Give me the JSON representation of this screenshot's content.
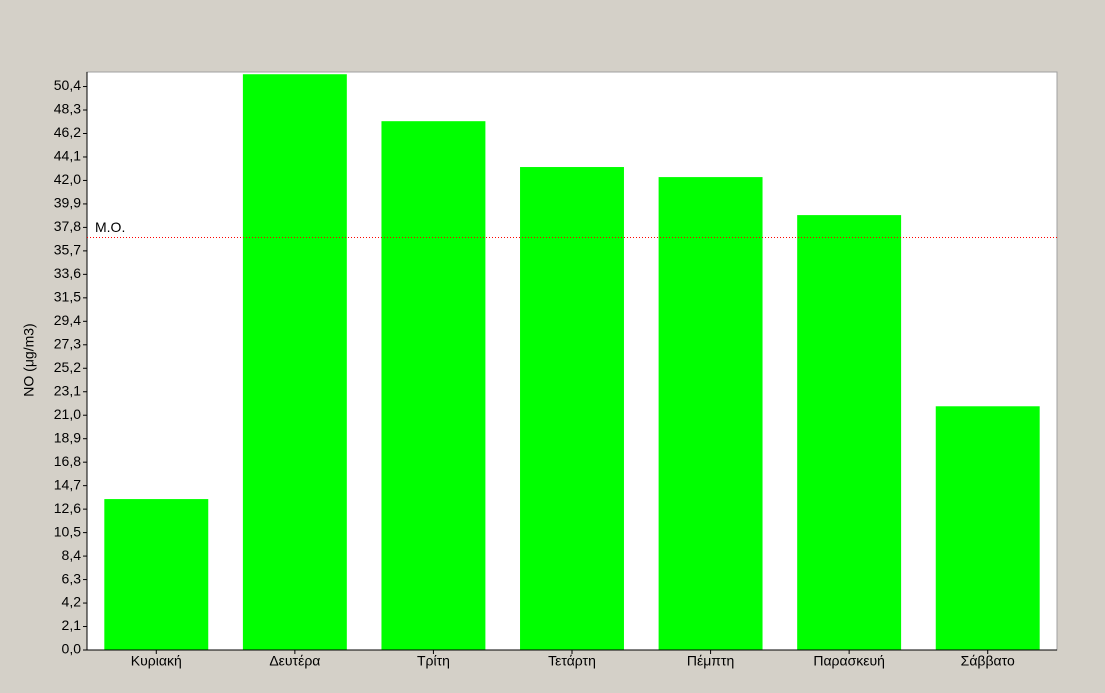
{
  "chart_data": {
    "type": "bar",
    "y_label": "NO (μg/m3)",
    "categories": [
      "Κυριακή",
      "Δευτέρα",
      "Τρίτη",
      "Τετάρτη",
      "Πέμπτη",
      "Παρασκευή",
      "Σάββατο"
    ],
    "values": [
      13.5,
      51.5,
      47.3,
      43.2,
      42.3,
      38.9,
      21.8
    ],
    "color": "#00ff00",
    "ylim": [
      0,
      51.7
    ],
    "yticks": [
      {
        "value": 0,
        "label": "0,0"
      },
      {
        "value": 2.1,
        "label": "2,1"
      },
      {
        "value": 4.2,
        "label": "4,2"
      },
      {
        "value": 6.3,
        "label": "6,3"
      },
      {
        "value": 8.4,
        "label": "8,4"
      },
      {
        "value": 10.5,
        "label": "10,5"
      },
      {
        "value": 12.6,
        "label": "12,6"
      },
      {
        "value": 14.7,
        "label": "14,7"
      },
      {
        "value": 16.8,
        "label": "16,8"
      },
      {
        "value": 18.9,
        "label": "18,9"
      },
      {
        "value": 21,
        "label": "21,0"
      },
      {
        "value": 23.1,
        "label": "23,1"
      },
      {
        "value": 25.2,
        "label": "25,2"
      },
      {
        "value": 27.3,
        "label": "27,3"
      },
      {
        "value": 29.4,
        "label": "29,4"
      },
      {
        "value": 31.5,
        "label": "31,5"
      },
      {
        "value": 33.6,
        "label": "33,6"
      },
      {
        "value": 35.7,
        "label": "35,7"
      },
      {
        "value": 37.8,
        "label": "37,8"
      },
      {
        "value": 39.9,
        "label": "39,9"
      },
      {
        "value": 42,
        "label": "42,0"
      },
      {
        "value": 44.1,
        "label": "44,1"
      },
      {
        "value": 46.2,
        "label": "46,2"
      },
      {
        "value": 48.3,
        "label": "48,3"
      },
      {
        "value": 50.4,
        "label": "50,4"
      }
    ],
    "reference_line": {
      "label": "M.O.",
      "value": 36.9,
      "color": "#ff0000"
    }
  }
}
